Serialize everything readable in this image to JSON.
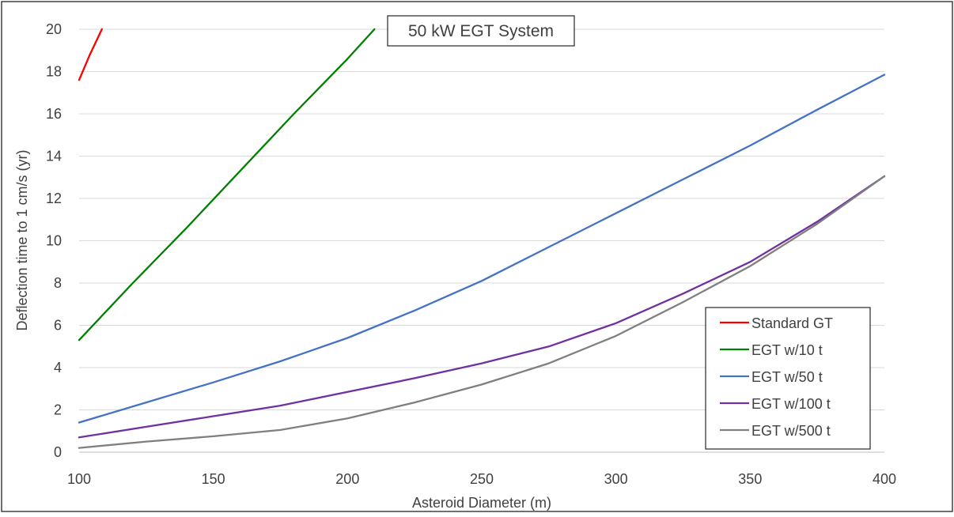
{
  "chart_data": {
    "type": "line",
    "title": "50 kW EGT System",
    "xlabel": "Asteroid Diameter (m)",
    "ylabel": "Deflection time to 1 cm/s (yr)",
    "xlim": [
      100,
      400
    ],
    "ylim": [
      0,
      20
    ],
    "x_ticks": [
      100,
      150,
      200,
      250,
      300,
      350,
      400
    ],
    "y_ticks": [
      0,
      2,
      4,
      6,
      8,
      10,
      12,
      14,
      16,
      18,
      20
    ],
    "grid": "horizontal",
    "legend_position": "bottom-right",
    "series": [
      {
        "name": "Standard GT",
        "color": "#ff0000",
        "x": [
          100,
          104,
          108.5
        ],
        "y": [
          17.6,
          18.8,
          20.0
        ]
      },
      {
        "name": "EGT w/10 t",
        "color": "#008000",
        "x": [
          100,
          120,
          140,
          160,
          180,
          200,
          210
        ],
        "y": [
          5.3,
          8.0,
          10.6,
          13.3,
          16.0,
          18.6,
          20.0
        ]
      },
      {
        "name": "EGT w/50 t",
        "color": "#4472c4",
        "x": [
          100,
          125,
          150,
          175,
          200,
          225,
          250,
          275,
          300,
          325,
          350,
          375,
          400
        ],
        "y": [
          1.4,
          2.35,
          3.3,
          4.3,
          5.4,
          6.7,
          8.1,
          9.7,
          11.3,
          12.9,
          14.5,
          16.2,
          17.85
        ]
      },
      {
        "name": "EGT w/100 t",
        "color": "#7030a0",
        "x": [
          100,
          125,
          150,
          175,
          200,
          225,
          250,
          275,
          300,
          325,
          350,
          375,
          400
        ],
        "y": [
          0.7,
          1.2,
          1.7,
          2.2,
          2.85,
          3.5,
          4.2,
          5.0,
          6.1,
          7.5,
          9.0,
          10.9,
          13.05
        ]
      },
      {
        "name": "EGT w/500 t",
        "color": "#7f7f7f",
        "x": [
          100,
          125,
          150,
          175,
          200,
          225,
          250,
          275,
          300,
          325,
          350,
          375,
          400
        ],
        "y": [
          0.2,
          0.5,
          0.75,
          1.05,
          1.6,
          2.35,
          3.2,
          4.2,
          5.5,
          7.1,
          8.8,
          10.8,
          13.05
        ]
      }
    ]
  }
}
